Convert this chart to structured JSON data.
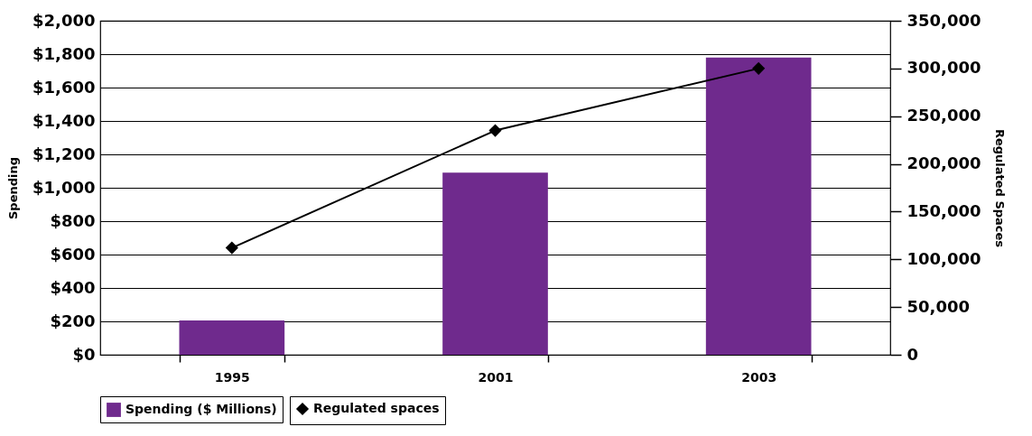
{
  "chart_data": {
    "type": "bar",
    "categories": [
      "1995",
      "2001",
      "2003"
    ],
    "series": [
      {
        "name": "Spending ($ Millions)",
        "color": "#6f2a8d",
        "values": [
          205,
          1090,
          1780
        ]
      },
      {
        "name": "Regulated spaces",
        "type": "line",
        "axis": "y2",
        "color": "#000000",
        "values": [
          112000,
          235000,
          300000
        ]
      }
    ],
    "ylabel": "Spending",
    "y2label": "Regulated Spaces",
    "ylim": [
      0,
      2000
    ],
    "yticks": [
      {
        "value": 0,
        "label": "$0"
      },
      {
        "value": 200,
        "label": "$200"
      },
      {
        "value": 400,
        "label": "$400"
      },
      {
        "value": 600,
        "label": "$600"
      },
      {
        "value": 800,
        "label": "$800"
      },
      {
        "value": 1000,
        "label": "$1,000"
      },
      {
        "value": 1200,
        "label": "$1,200"
      },
      {
        "value": 1400,
        "label": "$1,400"
      },
      {
        "value": 1600,
        "label": "$1,600"
      },
      {
        "value": 1800,
        "label": "$1,800"
      },
      {
        "value": 2000,
        "label": "$2,000"
      }
    ],
    "y2lim": [
      0,
      350000
    ],
    "y2ticks": [
      0,
      {
        "value": 50000,
        "label": "50,000"
      },
      {
        "value": 100000,
        "label": "100,000"
      },
      {
        "value": 150000,
        "label": "150,000"
      },
      {
        "value": 200000,
        "label": "200,000"
      },
      {
        "value": 250000,
        "label": "250,000"
      },
      {
        "value": 300000,
        "label": "300,000"
      },
      {
        "value": 350000,
        "label": "350,000"
      }
    ],
    "grid": "y",
    "legend": "bottom",
    "marker": "diamond"
  }
}
